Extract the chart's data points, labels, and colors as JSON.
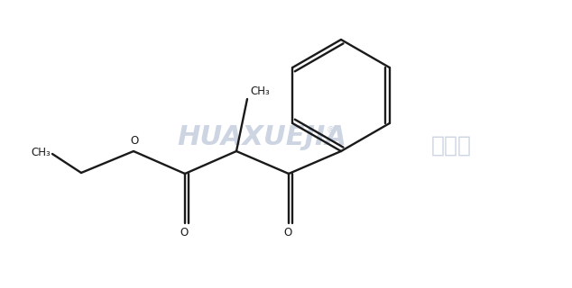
{
  "bg_color": "#ffffff",
  "line_color": "#1a1a1a",
  "line_width": 1.7,
  "watermark_text": "HUAXUEJIA",
  "watermark_color": "#cdd5e3",
  "watermark_cn": "化学加",
  "watermark_cn_color": "#cdd5e3",
  "label_CH3_left": "CH₃",
  "label_CH3_top": "CH₃",
  "label_O_ester": "O",
  "label_O_carbonyl1": "O",
  "label_O_carbonyl2": "O",
  "fig_width": 6.34,
  "fig_height": 3.2,
  "dpi": 100
}
